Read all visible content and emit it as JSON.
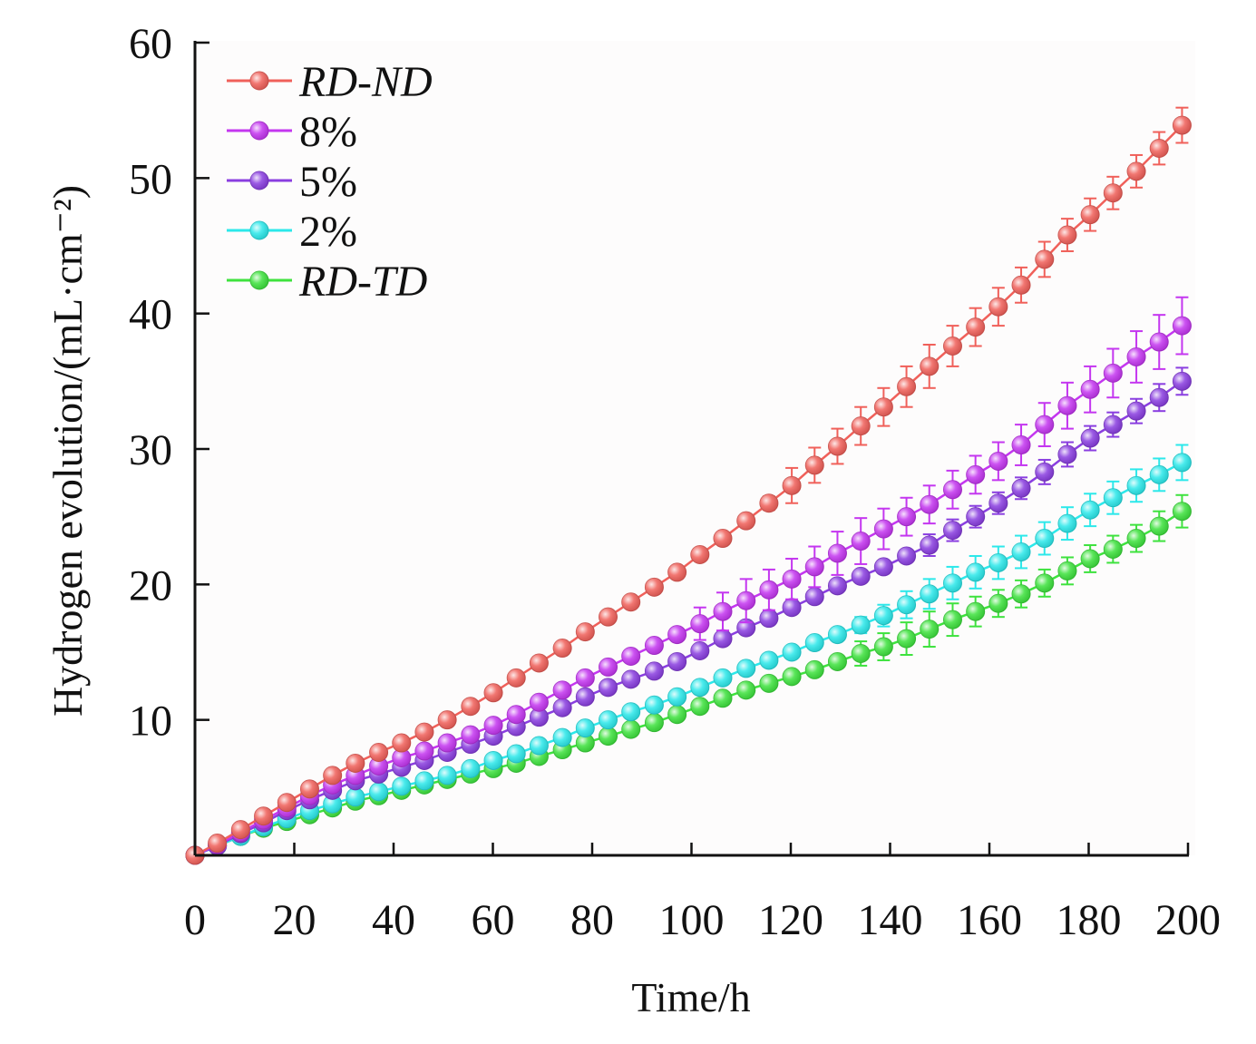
{
  "chart_data": {
    "type": "line",
    "xlabel": "Time/h",
    "ylabel": "Hydrogen evolution/(mL·cm⁻²)",
    "xlim": [
      0,
      200
    ],
    "ylim": [
      0,
      60
    ],
    "x_ticks": [
      "0",
      "20",
      "40",
      "60",
      "80",
      "100",
      "120",
      "140",
      "160",
      "180",
      "200"
    ],
    "y_ticks": [
      "10",
      "20",
      "30",
      "40",
      "50",
      "60"
    ],
    "grid": false,
    "legend_position": "top-left",
    "error_bars": true,
    "x": [
      0,
      4.5,
      9.2,
      13.8,
      18.5,
      23.1,
      27.7,
      32.3,
      37.0,
      41.6,
      46.2,
      50.8,
      55.5,
      60.1,
      64.7,
      69.3,
      74.0,
      78.6,
      83.2,
      87.8,
      92.5,
      97.1,
      101.7,
      106.3,
      111.0,
      115.6,
      120.2,
      124.8,
      129.4,
      134.1,
      138.7,
      143.3,
      147.9,
      152.6,
      157.2,
      161.8,
      166.4,
      171.1,
      175.7,
      180.3,
      184.9,
      189.6,
      194.2,
      198.8
    ],
    "series": [
      {
        "name": "RD-ND",
        "color": "#f0605a",
        "values": [
          0,
          0.9,
          1.9,
          2.9,
          3.9,
          4.9,
          5.9,
          6.8,
          7.6,
          8.3,
          9.1,
          10.0,
          11.0,
          12.0,
          13.1,
          14.2,
          15.3,
          16.5,
          17.6,
          18.7,
          19.8,
          20.9,
          22.2,
          23.4,
          24.7,
          26.0,
          27.3,
          28.8,
          30.2,
          31.7,
          33.1,
          34.6,
          36.1,
          37.6,
          39.0,
          40.5,
          42.1,
          44.0,
          45.8,
          47.3,
          48.9,
          50.5,
          52.2,
          53.9
        ],
        "errors": [
          0,
          0,
          0,
          0,
          0,
          0,
          0,
          0,
          0,
          0,
          0,
          0,
          0,
          0,
          0,
          0,
          0,
          0,
          0,
          0,
          0,
          0,
          0,
          0,
          0.3,
          0.5,
          1.3,
          1.3,
          1.3,
          1.4,
          1.4,
          1.5,
          1.6,
          1.5,
          1.4,
          1.4,
          1.3,
          1.3,
          1.2,
          1.2,
          1.2,
          1.2,
          1.2,
          1.3
        ]
      },
      {
        "name": "8%",
        "color": "#c436f0",
        "values": [
          0,
          0.8,
          1.7,
          2.6,
          3.5,
          4.4,
          5.2,
          5.9,
          6.6,
          7.2,
          7.7,
          8.3,
          8.9,
          9.6,
          10.4,
          11.3,
          12.2,
          13.1,
          13.9,
          14.7,
          15.5,
          16.3,
          17.1,
          18.0,
          18.8,
          19.6,
          20.4,
          21.3,
          22.3,
          23.2,
          24.1,
          25.0,
          25.9,
          27.0,
          28.1,
          29.1,
          30.3,
          31.8,
          33.2,
          34.4,
          35.6,
          36.8,
          37.9,
          39.1
        ],
        "errors": [
          0,
          0,
          0,
          0,
          0,
          0,
          0,
          0,
          0,
          0,
          0,
          0,
          0,
          0,
          0,
          0,
          0,
          0,
          0,
          0,
          0,
          0,
          1.2,
          1.4,
          1.6,
          1.5,
          1.5,
          1.5,
          1.6,
          1.7,
          1.5,
          1.4,
          1.4,
          1.4,
          1.4,
          1.4,
          1.5,
          1.6,
          1.7,
          1.7,
          1.8,
          1.9,
          2.0,
          2.1
        ]
      },
      {
        "name": "5%",
        "color": "#8a3ee0",
        "values": [
          0,
          0.7,
          1.6,
          2.4,
          3.3,
          4.1,
          4.8,
          5.5,
          6.0,
          6.5,
          7.0,
          7.6,
          8.2,
          8.8,
          9.5,
          10.2,
          10.9,
          11.7,
          12.4,
          13.0,
          13.6,
          14.3,
          15.1,
          16.0,
          16.8,
          17.5,
          18.3,
          19.1,
          19.9,
          20.6,
          21.3,
          22.1,
          22.9,
          24.0,
          25.0,
          26.0,
          27.1,
          28.3,
          29.6,
          30.8,
          31.8,
          32.8,
          33.8,
          35.0
        ],
        "errors": [
          0,
          0,
          0,
          0,
          0,
          0,
          0,
          0,
          0,
          0,
          0,
          0,
          0,
          0,
          0,
          0,
          0,
          0,
          0,
          0,
          0,
          0,
          0,
          0,
          0,
          0,
          0,
          0,
          0,
          0,
          0,
          0,
          0.8,
          0.8,
          0.8,
          0.8,
          0.8,
          0.9,
          0.9,
          0.9,
          0.9,
          0.9,
          1.0,
          1.0
        ]
      },
      {
        "name": "2%",
        "color": "#2ce8ea",
        "values": [
          0,
          0.7,
          1.4,
          2.1,
          2.7,
          3.3,
          3.8,
          4.3,
          4.7,
          5.1,
          5.5,
          5.9,
          6.4,
          7.0,
          7.5,
          8.1,
          8.7,
          9.4,
          10.0,
          10.6,
          11.1,
          11.7,
          12.4,
          13.1,
          13.8,
          14.4,
          15.0,
          15.7,
          16.3,
          17.0,
          17.7,
          18.5,
          19.3,
          20.1,
          20.9,
          21.6,
          22.4,
          23.4,
          24.5,
          25.5,
          26.4,
          27.3,
          28.1,
          29.0
        ],
        "errors": [
          0,
          0,
          0,
          0,
          0,
          0,
          0,
          0,
          0,
          0,
          0,
          0,
          0,
          0,
          0,
          0,
          0,
          0,
          0,
          0,
          0,
          0,
          0,
          0,
          0,
          0,
          0,
          0,
          0,
          0.6,
          0.8,
          1.0,
          1.1,
          1.2,
          1.2,
          1.2,
          1.2,
          1.2,
          1.2,
          1.2,
          1.2,
          1.2,
          1.2,
          1.3
        ]
      },
      {
        "name": "RD-TD",
        "color": "#3ee23e",
        "values": [
          0,
          0.7,
          1.4,
          2.0,
          2.5,
          3.0,
          3.5,
          4.0,
          4.4,
          4.8,
          5.2,
          5.6,
          6.0,
          6.4,
          6.8,
          7.3,
          7.8,
          8.3,
          8.8,
          9.3,
          9.8,
          10.4,
          11.0,
          11.6,
          12.2,
          12.7,
          13.2,
          13.7,
          14.3,
          14.9,
          15.4,
          16.0,
          16.7,
          17.4,
          18.0,
          18.6,
          19.3,
          20.1,
          21.0,
          21.9,
          22.6,
          23.4,
          24.3,
          25.4
        ],
        "errors": [
          0,
          0,
          0,
          0,
          0,
          0,
          0,
          0,
          0,
          0,
          0,
          0,
          0,
          0,
          0,
          0,
          0,
          0,
          0,
          0,
          0,
          0,
          0,
          0,
          0,
          0,
          0,
          0,
          0,
          0.9,
          1.0,
          1.2,
          1.3,
          1.2,
          1.1,
          1.0,
          1.0,
          1.0,
          1.0,
          1.0,
          1.0,
          1.0,
          1.1,
          1.2
        ]
      }
    ],
    "legend_italic": [
      true,
      false,
      false,
      false,
      true
    ]
  }
}
